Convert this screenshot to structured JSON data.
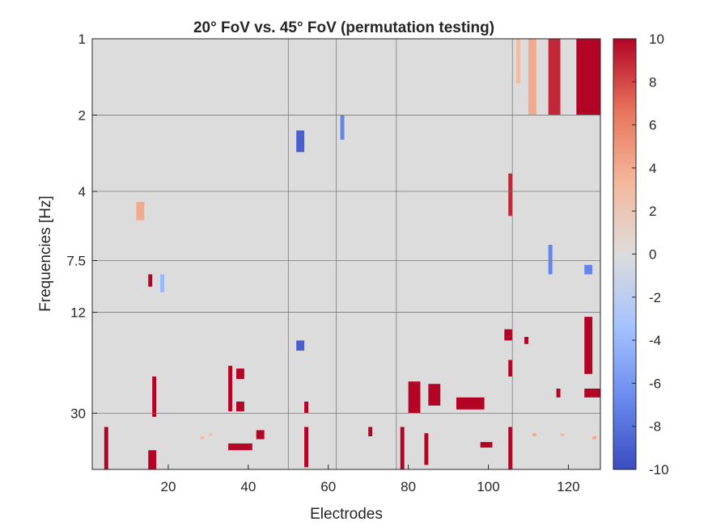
{
  "chart_data": {
    "type": "heatmap",
    "title": "20° FoV vs. 45° FoV (permutation testing)",
    "xlabel": "Electrodes",
    "ylabel": "Frequencies [Hz]",
    "xlim": [
      1,
      128
    ],
    "ylim": [
      1,
      50
    ],
    "x_ticks": [
      20,
      40,
      60,
      80,
      100,
      120
    ],
    "y_ticks": [
      1,
      2,
      4,
      7.5,
      12,
      30
    ],
    "y_tick_labels": [
      "1",
      "2",
      "4",
      "7.5",
      "12",
      "30"
    ],
    "vertical_grid_lines": [
      50,
      62,
      77,
      106
    ],
    "colorbar": {
      "min": -10,
      "max": 10,
      "ticks": [
        10,
        8,
        6,
        4,
        2,
        0,
        -2,
        -4,
        -6,
        -8,
        -10
      ],
      "tick_labels": [
        "10",
        "8",
        "6",
        "4",
        "2",
        "0",
        "-2",
        "-4",
        "-6",
        "-8",
        "-10"
      ],
      "colormap": [
        "#3b4cc0",
        "#6a8bef",
        "#a5c3fe",
        "#dddcdc",
        "#f4b89b",
        "#e7745b",
        "#b40426"
      ]
    },
    "neutral_color": "#dddcdc",
    "cells": [
      {
        "x": 122,
        "y": 1,
        "x2": 128,
        "y2": 2,
        "value": 10
      },
      {
        "x": 115,
        "y": 1,
        "x2": 118,
        "y2": 2,
        "value": 9
      },
      {
        "x": 110,
        "y": 1,
        "x2": 112,
        "y2": 2,
        "value": 4
      },
      {
        "x": 107,
        "y": 1,
        "x2": 108,
        "y2": 1.5,
        "value": 3
      },
      {
        "x": 52,
        "y": 2.3,
        "x2": 54,
        "y2": 2.8,
        "value": -9
      },
      {
        "x": 63,
        "y": 2.0,
        "x2": 64,
        "y2": 2.5,
        "value": -7
      },
      {
        "x": 105,
        "y": 3.4,
        "x2": 106,
        "y2": 5,
        "value": 9
      },
      {
        "x": 12,
        "y": 4.4,
        "x2": 14,
        "y2": 5.2,
        "value": 4
      },
      {
        "x": 115,
        "y": 6.5,
        "x2": 116,
        "y2": 8.5,
        "value": -7
      },
      {
        "x": 124,
        "y": 7.8,
        "x2": 126,
        "y2": 8.5,
        "value": -7
      },
      {
        "x": 15,
        "y": 8.5,
        "x2": 16,
        "y2": 9.5,
        "value": 10
      },
      {
        "x": 18,
        "y": 8.5,
        "x2": 19,
        "y2": 10,
        "value": -4
      },
      {
        "x": 124,
        "y": 12.5,
        "x2": 126,
        "y2": 21,
        "value": 10
      },
      {
        "x": 104,
        "y": 14,
        "x2": 106,
        "y2": 15.5,
        "value": 10
      },
      {
        "x": 109,
        "y": 15,
        "x2": 110,
        "y2": 16,
        "value": 10
      },
      {
        "x": 52,
        "y": 15.5,
        "x2": 54,
        "y2": 17,
        "value": -9
      },
      {
        "x": 105,
        "y": 18.5,
        "x2": 106,
        "y2": 21.5,
        "value": 10
      },
      {
        "x": 35,
        "y": 19.5,
        "x2": 36,
        "y2": 29.5,
        "value": 10
      },
      {
        "x": 37,
        "y": 20,
        "x2": 39,
        "y2": 22,
        "value": 10
      },
      {
        "x": 16,
        "y": 21.5,
        "x2": 17,
        "y2": 31,
        "value": 10
      },
      {
        "x": 80,
        "y": 22.5,
        "x2": 83,
        "y2": 30,
        "value": 10
      },
      {
        "x": 85,
        "y": 23,
        "x2": 88,
        "y2": 28,
        "value": 10
      },
      {
        "x": 92,
        "y": 26,
        "x2": 99,
        "y2": 29,
        "value": 10
      },
      {
        "x": 124,
        "y": 24,
        "x2": 128,
        "y2": 26,
        "value": 10
      },
      {
        "x": 117,
        "y": 24,
        "x2": 118,
        "y2": 26,
        "value": 10
      },
      {
        "x": 37,
        "y": 27,
        "x2": 39,
        "y2": 29.5,
        "value": 10
      },
      {
        "x": 54,
        "y": 27,
        "x2": 55,
        "y2": 30,
        "value": 10
      },
      {
        "x": 4,
        "y": 34,
        "x2": 5,
        "y2": 50,
        "value": 10
      },
      {
        "x": 15,
        "y": 42,
        "x2": 17,
        "y2": 50,
        "value": 10
      },
      {
        "x": 35,
        "y": 39.5,
        "x2": 41,
        "y2": 42,
        "value": 10
      },
      {
        "x": 42,
        "y": 35,
        "x2": 44,
        "y2": 38,
        "value": 10
      },
      {
        "x": 54,
        "y": 34,
        "x2": 55,
        "y2": 49,
        "value": 10
      },
      {
        "x": 70,
        "y": 34,
        "x2": 71,
        "y2": 37,
        "value": 10
      },
      {
        "x": 78,
        "y": 34,
        "x2": 79,
        "y2": 50,
        "value": 10
      },
      {
        "x": 84,
        "y": 36,
        "x2": 85,
        "y2": 48,
        "value": 10
      },
      {
        "x": 98,
        "y": 39,
        "x2": 101,
        "y2": 41,
        "value": 10
      },
      {
        "x": 105,
        "y": 34,
        "x2": 106,
        "y2": 50,
        "value": 10
      },
      {
        "x": 111,
        "y": 36,
        "x2": 112,
        "y2": 37,
        "value": 4
      },
      {
        "x": 118,
        "y": 36,
        "x2": 119,
        "y2": 37,
        "value": 3
      },
      {
        "x": 126,
        "y": 37,
        "x2": 127,
        "y2": 38,
        "value": 4
      },
      {
        "x": 28,
        "y": 37,
        "x2": 29,
        "y2": 38,
        "value": 3
      },
      {
        "x": 30,
        "y": 36,
        "x2": 31,
        "y2": 37,
        "value": 2
      }
    ]
  }
}
